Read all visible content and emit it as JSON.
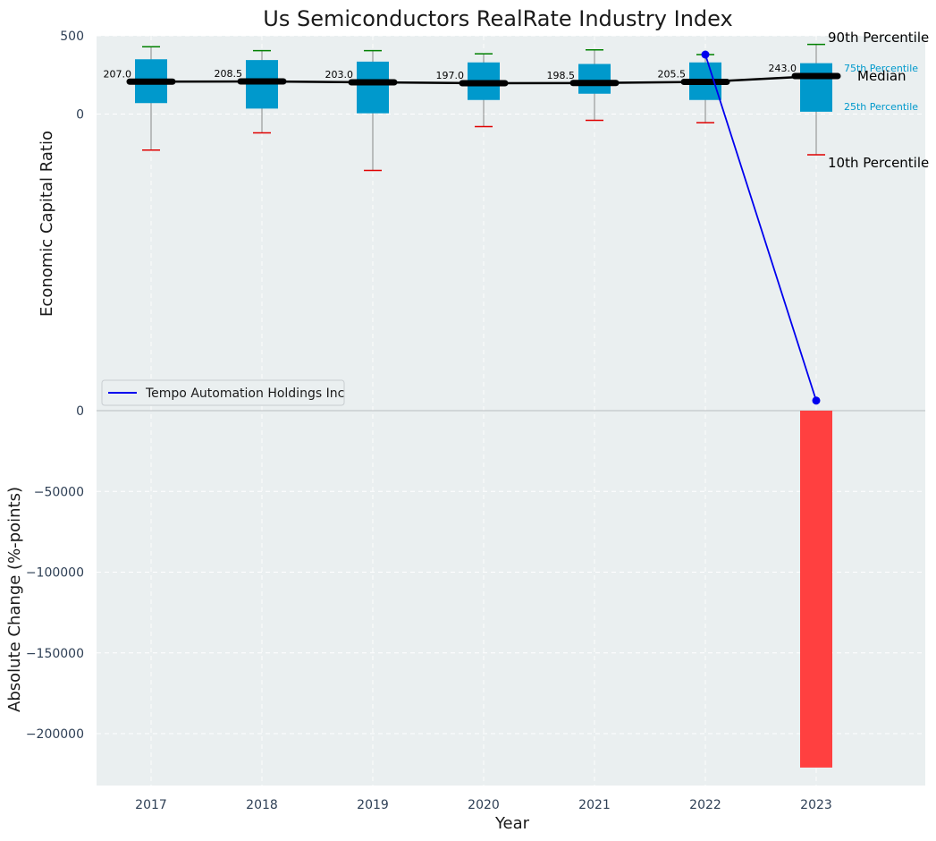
{
  "chart_data": {
    "title": "Us Semiconductors RealRate Industry Index",
    "xlabel": "Year",
    "top_panel": {
      "type": "box",
      "ylabel": "Economic Capital Ratio",
      "yticks": [
        0,
        500
      ],
      "years": [
        "2017",
        "2018",
        "2019",
        "2020",
        "2021",
        "2022",
        "2023"
      ],
      "p10": [
        -230,
        -120,
        -360,
        -80,
        -40,
        -55,
        -260
      ],
      "p25": [
        70,
        35,
        5,
        90,
        130,
        90,
        15
      ],
      "median": [
        207.0,
        208.5,
        203.0,
        197.0,
        198.5,
        205.5,
        243.0
      ],
      "p75": [
        350,
        345,
        335,
        330,
        320,
        330,
        325
      ],
      "p90": [
        430,
        405,
        405,
        385,
        410,
        380,
        445
      ],
      "median_labels": [
        "207.0",
        "208.5",
        "203.0",
        "197.0",
        "198.5",
        "205.5",
        "243.0"
      ],
      "annotations": {
        "p90": "90th Percentile",
        "p75": "75th Percentile",
        "median": "Median",
        "p25": "25th Percentile",
        "p10": "10th Percentile"
      }
    },
    "company_series": {
      "name": "Tempo Automation Holdings Inc",
      "points": [
        {
          "x": "2022",
          "y": 380
        },
        {
          "x": "2023",
          "y": -1830
        }
      ]
    },
    "bottom_panel": {
      "type": "bar",
      "ylabel": "Absolute Change (%-points)",
      "yticks": [
        0,
        -50000,
        -100000,
        -150000,
        -200000
      ],
      "ytick_labels": [
        "0",
        "−50000",
        "−100000",
        "−150000",
        "−200000"
      ],
      "x": [
        "2023"
      ],
      "values": [
        -221000
      ]
    },
    "xticks": [
      "2017",
      "2018",
      "2019",
      "2020",
      "2021",
      "2022",
      "2023"
    ],
    "colors": {
      "box": "#0099cc",
      "median": "#000000",
      "p90_cap": "#008000",
      "p10_cap": "#e00000",
      "company": "#0000ee",
      "bar": "#ff4040",
      "panel_bg": "#eaeff0",
      "annot_blue": "#0099cc"
    },
    "legend_position": "upper-left of top panel"
  }
}
